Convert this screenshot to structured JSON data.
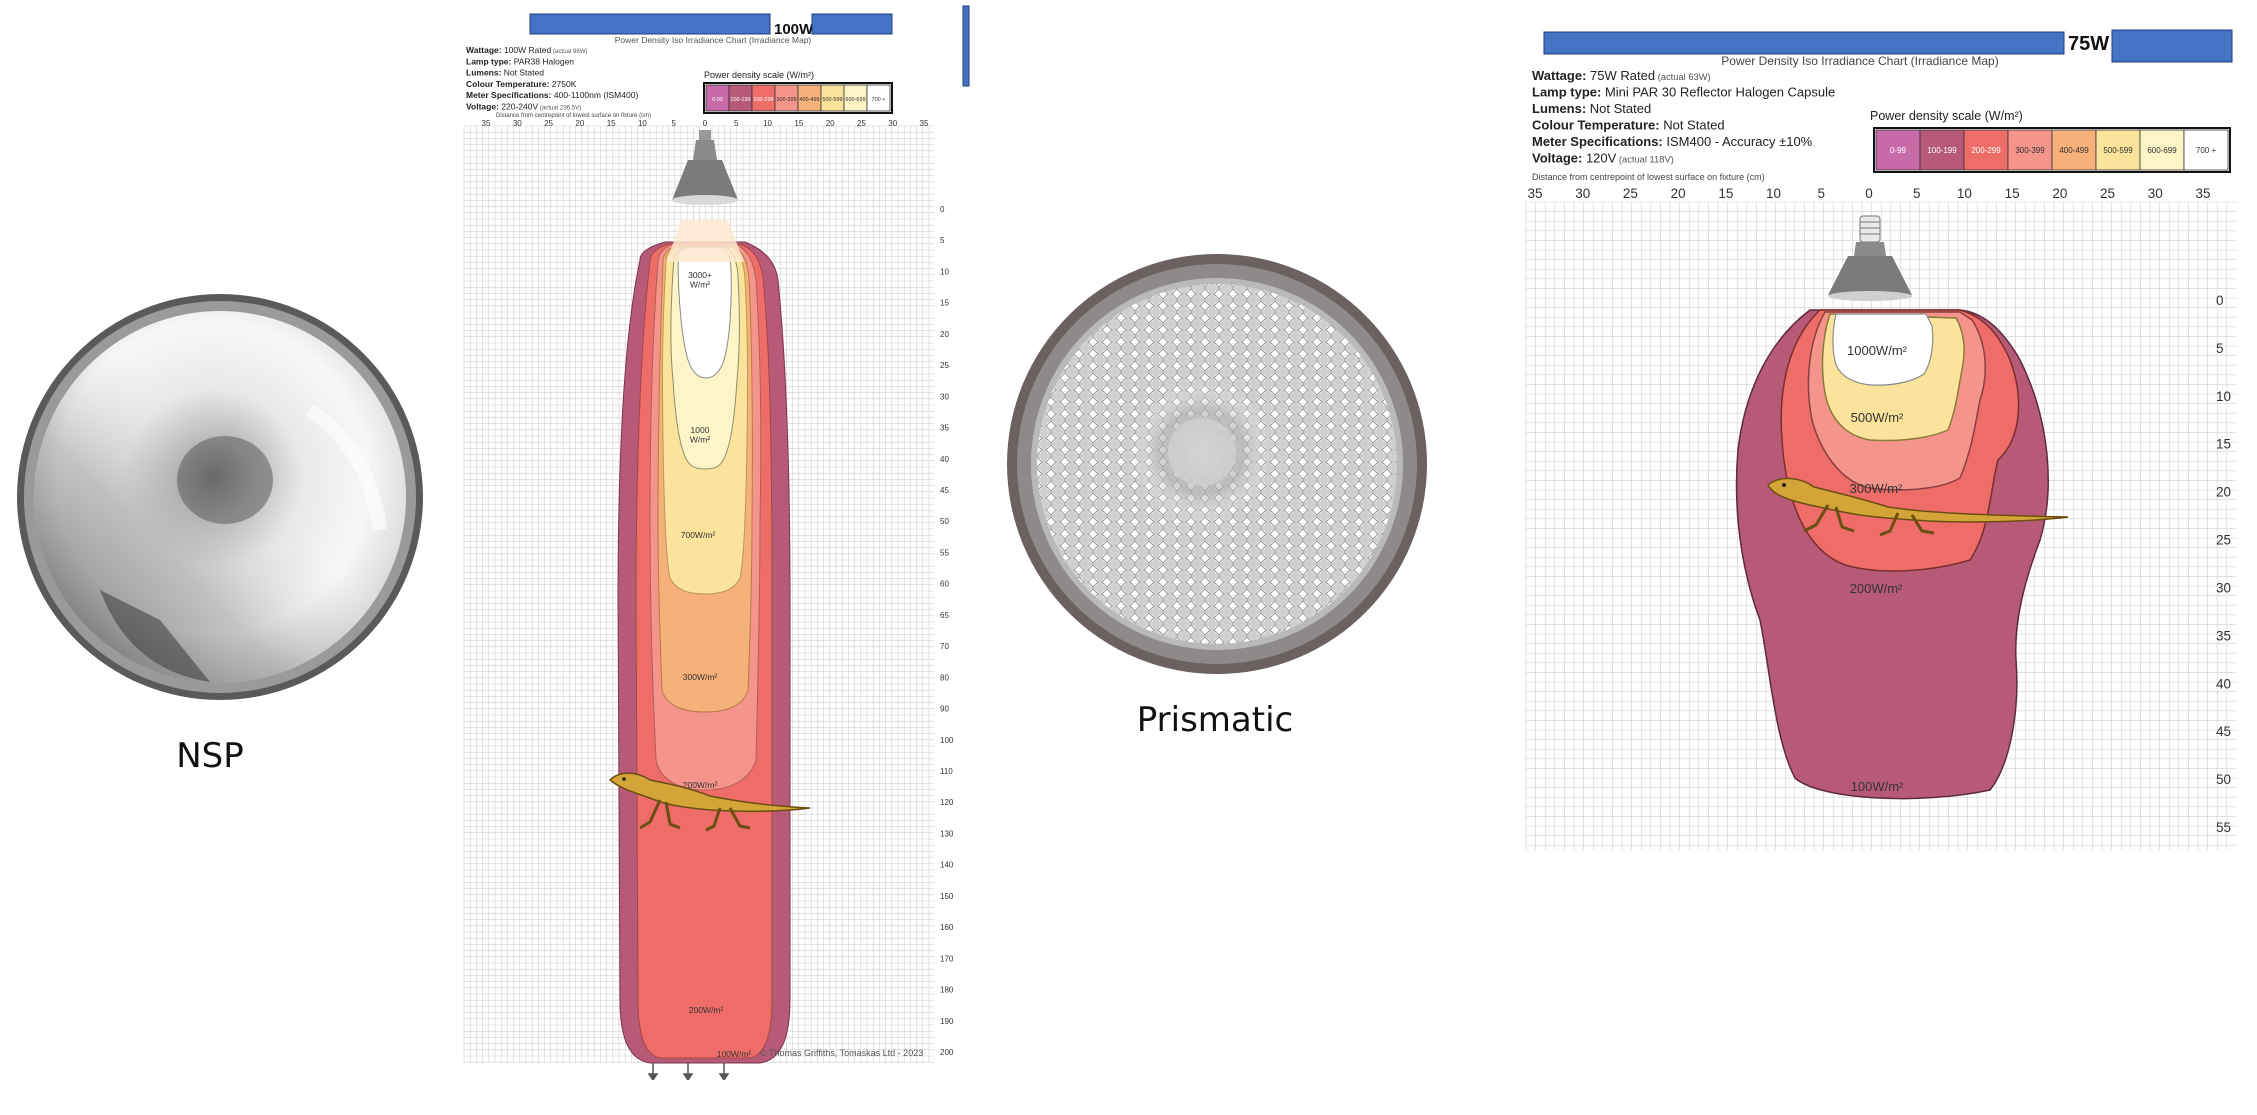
{
  "captions": {
    "nsp": "NSP",
    "prismatic": "Prismatic"
  },
  "chart100": {
    "badge": "100W",
    "title": "Power Density Iso Irradiance Chart (Irradiance Map)",
    "specs": [
      {
        "label": "Wattage:",
        "value": "100W Rated",
        "note": "(actual 96W)"
      },
      {
        "label": "Lamp type:",
        "value": "PAR38 Halogen",
        "note": ""
      },
      {
        "label": "Lumens:",
        "value": "Not Stated",
        "note": ""
      },
      {
        "label": "Colour Temperature:",
        "value": "2750K",
        "note": ""
      },
      {
        "label": "Meter Specifications:",
        "value": "400-1100nm (ISM400)",
        "note": ""
      },
      {
        "label": "Voltage:",
        "value": "220-240V",
        "note": "(actual 236.5V)"
      }
    ],
    "scale_title": "Power density scale (W/m²)",
    "scale": [
      {
        "label": "0-99",
        "color": "#c76aa8"
      },
      {
        "label": "100-199",
        "color": "#b75a78"
      },
      {
        "label": "200-299",
        "color": "#ef6d69"
      },
      {
        "label": "300-399",
        "color": "#f4948a"
      },
      {
        "label": "400-499",
        "color": "#f6b07a"
      },
      {
        "label": "500-599",
        "color": "#fbe39c"
      },
      {
        "label": "600-699",
        "color": "#fdf5c8"
      },
      {
        "label": "700 +",
        "color": "#ffffff"
      }
    ],
    "axis_label": "Distance from centrepoint of lowest surface on fixture (cm)",
    "x_ticks": [
      "35",
      "30",
      "25",
      "20",
      "15",
      "10",
      "5",
      "0",
      "5",
      "10",
      "15",
      "20",
      "25",
      "30",
      "35"
    ],
    "y_ticks": [
      "0",
      "5",
      "10",
      "15",
      "20",
      "25",
      "30",
      "35",
      "40",
      "45",
      "50",
      "55",
      "60",
      "65",
      "70",
      "80",
      "90",
      "100",
      "110",
      "120",
      "130",
      "140",
      "150",
      "160",
      "170",
      "180",
      "190",
      "200"
    ],
    "zone_labels": [
      "3000+\nW/m²",
      "1000\nW/m²",
      "700W/m²",
      "300W/m²",
      "200W/m²",
      "200W/m²",
      "100W/m²"
    ],
    "credit": "© Thomas Griffiths, Tomaskas Ltd - 2023"
  },
  "chart75": {
    "badge": "75W",
    "title": "Power Density Iso Irradiance Chart (Irradiance Map)",
    "specs": [
      {
        "label": "Wattage:",
        "value": "75W Rated",
        "note": "(actual 63W)"
      },
      {
        "label": "Lamp type:",
        "value": "Mini PAR 30 Reflector Halogen Capsule",
        "note": ""
      },
      {
        "label": "Lumens:",
        "value": "Not Stated",
        "note": ""
      },
      {
        "label": "Colour Temperature:",
        "value": "Not Stated",
        "note": ""
      },
      {
        "label": "Meter Specifications:",
        "value": "ISM400 - Accuracy ±10%",
        "note": ""
      },
      {
        "label": "Voltage:",
        "value": "120V",
        "note": "(actual 118V)"
      }
    ],
    "scale_title": "Power density scale (W/m²)",
    "scale": [
      {
        "label": "0-99",
        "color": "#c76aa8"
      },
      {
        "label": "100-199",
        "color": "#b75a78"
      },
      {
        "label": "200-299",
        "color": "#ef6d69"
      },
      {
        "label": "300-399",
        "color": "#f4948a"
      },
      {
        "label": "400-499",
        "color": "#f6b07a"
      },
      {
        "label": "500-599",
        "color": "#fbe39c"
      },
      {
        "label": "600-699",
        "color": "#fdf5c8"
      },
      {
        "label": "700 +",
        "color": "#ffffff"
      }
    ],
    "axis_label": "Distance from centrepoint of lowest surface on fixture (cm)",
    "x_ticks": [
      "35",
      "30",
      "25",
      "20",
      "15",
      "10",
      "5",
      "0",
      "5",
      "10",
      "15",
      "20",
      "25",
      "30",
      "35"
    ],
    "y_ticks": [
      "0",
      "5",
      "10",
      "15",
      "20",
      "25",
      "30",
      "35",
      "40",
      "45",
      "50",
      "55"
    ],
    "zone_labels": [
      "1000W/m²",
      "500W/m²",
      "300W/m²",
      "200W/m²",
      "100W/m²"
    ]
  }
}
